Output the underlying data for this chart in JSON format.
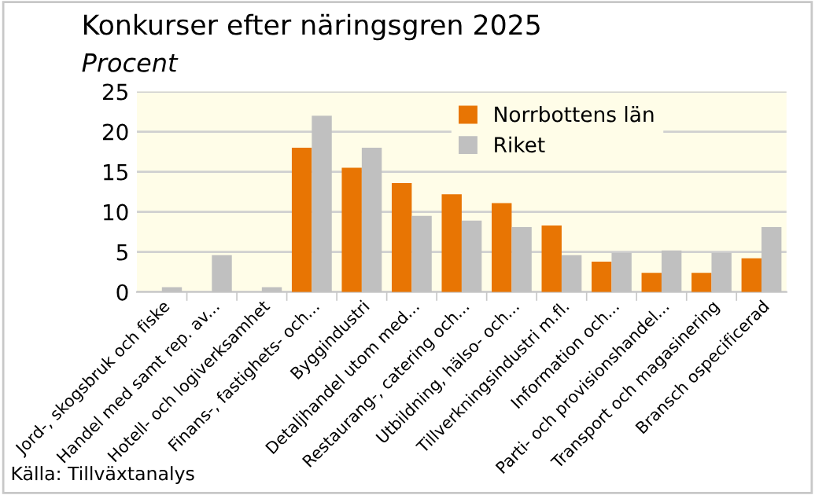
{
  "chart_data": {
    "type": "bar",
    "title": "Konkurser efter näringsgren 2025",
    "subtitle": "Procent",
    "categories": [
      "Jord-, skogsbruk och fiske",
      "Handel med samt rep. av...",
      "Hotell- och logiverksamhet",
      "Finans-, fastighets- och...",
      "Byggindustri",
      "Detaljhandel utom med...",
      "Restaurang-, catering och...",
      "Utbildning, hälso- och...",
      "Tillverkningsindustri m.fl.",
      "Information och...",
      "Parti- och provisionshandel...",
      "Transport och magasinering",
      "Bransch ospecificerad"
    ],
    "series": [
      {
        "name": "Norrbottens län",
        "color": "#e87503",
        "values": [
          0,
          0,
          0,
          18,
          15.5,
          13.6,
          12.2,
          11.1,
          8.3,
          3.8,
          2.4,
          2.4,
          4.2
        ]
      },
      {
        "name": "Riket",
        "color": "#c0c0c0",
        "values": [
          0.6,
          4.6,
          0.6,
          22,
          18,
          9.5,
          8.9,
          8.1,
          4.6,
          4.9,
          5.2,
          4.9,
          8.1
        ]
      }
    ],
    "ylim": [
      0,
      25
    ],
    "yticks": [
      0,
      5,
      10,
      15,
      20,
      25
    ],
    "grid": "y",
    "legend": "top right",
    "annotations": [
      "Källa: Tillväxtanalys"
    ]
  }
}
